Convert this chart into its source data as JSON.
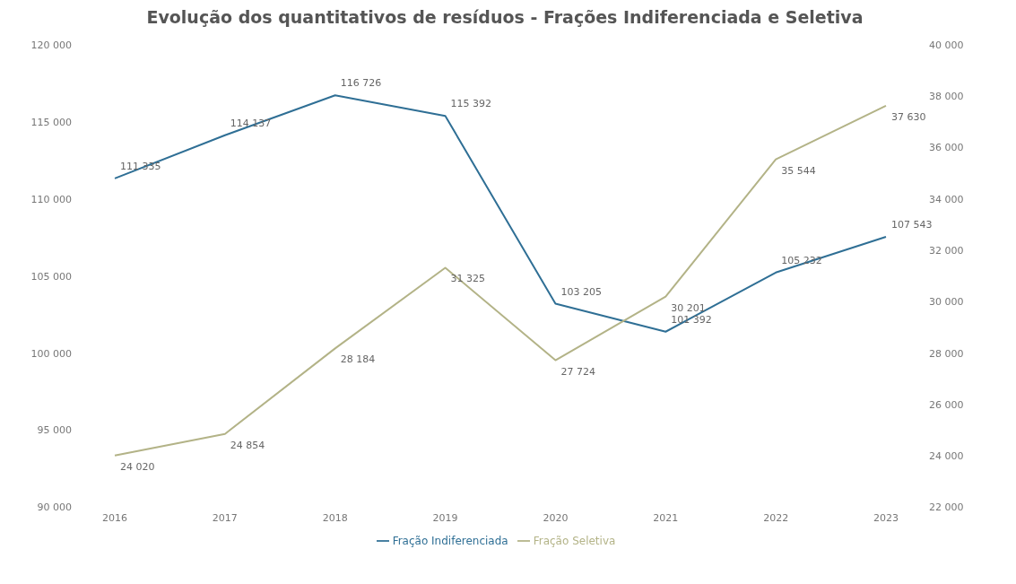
{
  "chart_data": {
    "type": "line",
    "title": "Evolução dos quantitativos de resíduos - Frações Indiferenciada e Seletiva",
    "categories": [
      "2016",
      "2017",
      "2018",
      "2019",
      "2020",
      "2021",
      "2022",
      "2023"
    ],
    "series": [
      {
        "name": "Fração Indiferenciada",
        "color": "#2f6f95",
        "values": [
          111335,
          114137,
          116726,
          115392,
          103205,
          101392,
          105232,
          107543
        ]
      },
      {
        "name": "Fração Seletiva",
        "color": "#b3b387",
        "axis": "y2",
        "values": [
          24020,
          24854,
          28184,
          31325,
          27724,
          30201,
          35544,
          37630
        ]
      }
    ],
    "ylim": [
      90000,
      120000
    ],
    "yticks": [
      90000,
      95000,
      100000,
      105000,
      110000,
      115000,
      120000
    ],
    "y2lim": [
      22000,
      40000
    ],
    "y2ticks": [
      22000,
      24000,
      26000,
      28000,
      30000,
      32000,
      34000,
      36000,
      38000,
      40000
    ],
    "data_labels": true,
    "legend": "bottom",
    "marker": "none",
    "line_style": "solid"
  }
}
